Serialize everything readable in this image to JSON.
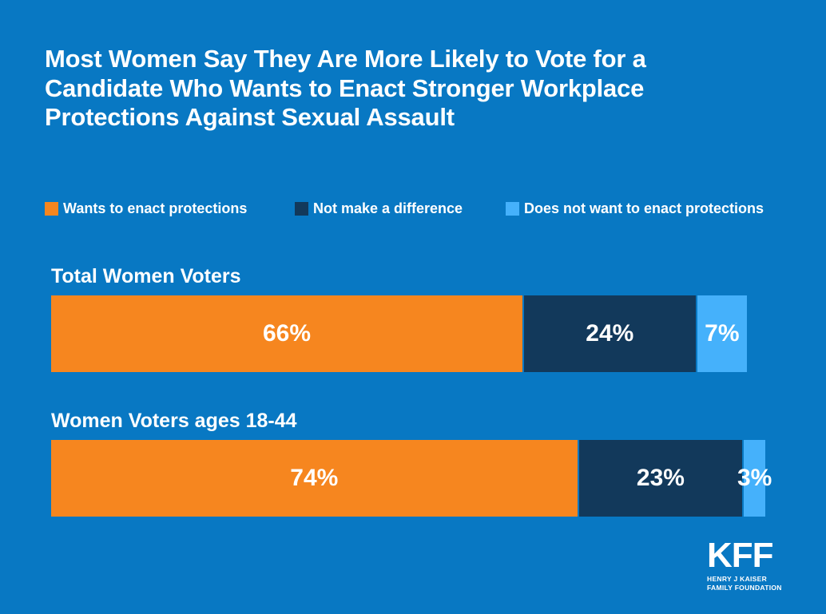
{
  "colors": {
    "background": "#0878c3",
    "text": "#ffffff",
    "orange": "#f6861f",
    "navy": "#12395b",
    "light_blue": "#45b1fb"
  },
  "title": {
    "text": "Most Women Say They Are More Likely to Vote for a Candidate Who Wants to Enact Stronger Workplace Protections Against Sexual Assault",
    "lines": [
      "Most Women Say They Are More Likely to Vote for a",
      "Candidate Who Wants to Enact Stronger Workplace",
      "Protections Against Sexual Assault"
    ]
  },
  "chart_data": {
    "type": "bar",
    "orientation": "horizontal",
    "stacked": true,
    "title": "Most Women Say They Are More Likely to Vote for a Candidate Who Wants to Enact Stronger Workplace Protections Against Sexual Assault",
    "categories": [
      "Total Women Voters",
      "Women Voters ages 18-44"
    ],
    "series": [
      {
        "name": "Wants to enact protections",
        "color": "#f6861f",
        "values": [
          66,
          74
        ]
      },
      {
        "name": "Not make a difference",
        "color": "#12395b",
        "values": [
          24,
          23
        ]
      },
      {
        "name": "Does not want to enact protections",
        "color": "#45b1fb",
        "values": [
          7,
          3
        ]
      }
    ],
    "value_labels": [
      [
        "66%",
        "24%",
        "7%"
      ],
      [
        "74%",
        "23%",
        "3%"
      ]
    ],
    "xlim": [
      0,
      100
    ],
    "legend_position": "top",
    "grid": false
  },
  "logo": {
    "brand": "KFF",
    "line1": "HENRY J KAISER",
    "line2": "FAMILY FOUNDATION"
  }
}
